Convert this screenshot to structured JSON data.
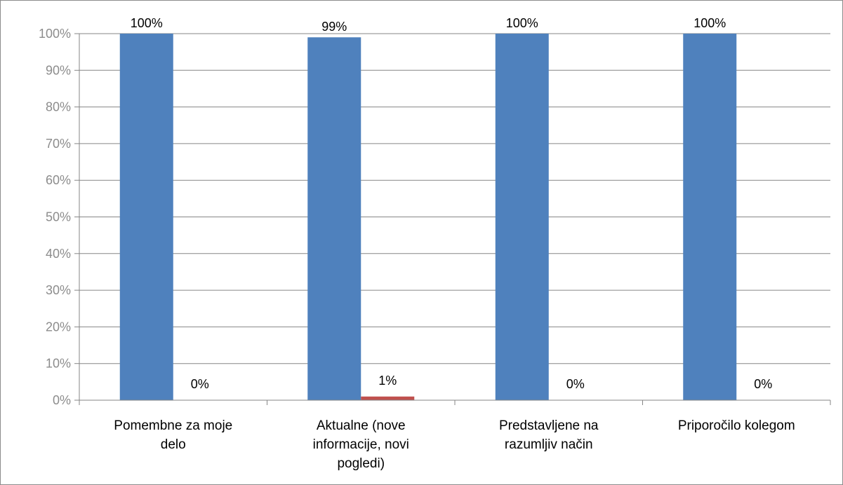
{
  "chart_data": {
    "type": "bar",
    "categories": [
      [
        "Pomembne za moje",
        "delo"
      ],
      [
        "Aktualne (nove",
        "informacije, novi",
        "pogledi)"
      ],
      [
        "Predstavljene na",
        "razumljiv način"
      ],
      [
        "Priporočilo kolegom"
      ]
    ],
    "series": [
      {
        "color": "#4f81bd",
        "values": [
          100,
          99,
          100,
          100
        ],
        "labels": [
          "100%",
          "99%",
          "100%",
          "100%"
        ]
      },
      {
        "color": "#c0504d",
        "values": [
          0,
          1,
          0,
          0
        ],
        "labels": [
          "0%",
          "1%",
          "0%",
          "0%"
        ]
      }
    ],
    "ylim": [
      0,
      100
    ],
    "yticks": [
      "0%",
      "10%",
      "20%",
      "30%",
      "40%",
      "50%",
      "60%",
      "70%",
      "80%",
      "90%",
      "100%"
    ],
    "grid": true,
    "legend": "none"
  }
}
